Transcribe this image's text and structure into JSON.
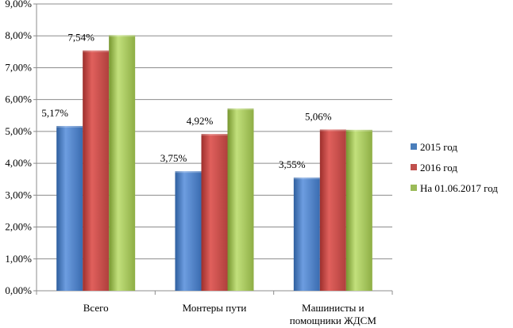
{
  "chart_data": {
    "type": "bar",
    "categories": [
      [
        "Всего"
      ],
      [
        "Монтеры пути"
      ],
      [
        "Машинисты и",
        "помощники ЖДСМ"
      ]
    ],
    "series": [
      {
        "name": "2015 год",
        "values": [
          5.17,
          3.75,
          3.55
        ],
        "labels": [
          "5,17%",
          "3,75%",
          "3,55%"
        ],
        "color": "#4a7ebb"
      },
      {
        "name": "2016 год",
        "values": [
          7.54,
          4.92,
          5.06
        ],
        "labels": [
          "7,54%",
          "4,92%",
          "5,06%"
        ],
        "color": "#c0504d"
      },
      {
        "name": "На 01.06.2017 год",
        "values": [
          8.02,
          5.72,
          5.05
        ],
        "labels": [
          "",
          "",
          ""
        ],
        "color": "#9bbb59"
      }
    ],
    "ylim": [
      0,
      9
    ],
    "yticks": [
      0,
      1,
      2,
      3,
      4,
      5,
      6,
      7,
      8,
      9
    ],
    "ytick_labels": [
      "0,00%",
      "1,00%",
      "2,00%",
      "3,00%",
      "4,00%",
      "5,00%",
      "6,00%",
      "7,00%",
      "8,00%",
      "9,00%"
    ],
    "grid": true,
    "legend_position": "right",
    "title": "",
    "xlabel": "",
    "ylabel": ""
  }
}
